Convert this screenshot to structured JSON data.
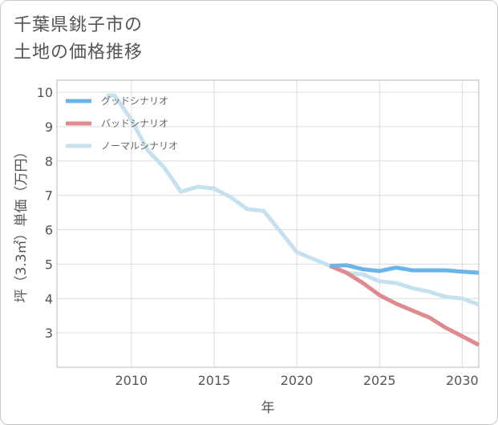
{
  "page": {
    "title": "千葉県銚子市の\n土地の価格推移"
  },
  "chart_data": {
    "type": "line",
    "xlabel": "年",
    "ylabel": "坪（3.3㎡）単価（万円）",
    "xlim": [
      2005.5,
      2031
    ],
    "ylim": [
      2,
      10.35
    ],
    "x_ticks": [
      2010,
      2015,
      2020,
      2025,
      2030
    ],
    "y_ticks": [
      3,
      4,
      5,
      6,
      7,
      8,
      9,
      10
    ],
    "grid": true,
    "legend_position": "top-left",
    "series": [
      {
        "name": "グッドシナリオ",
        "color": "#6ab4e8",
        "x": [
          2022,
          2023,
          2024,
          2025,
          2026,
          2027,
          2028,
          2029,
          2030,
          2031
        ],
        "values": [
          4.95,
          4.97,
          4.85,
          4.8,
          4.9,
          4.82,
          4.82,
          4.82,
          4.78,
          4.75
        ]
      },
      {
        "name": "バッドシナリオ",
        "color": "#de8a8e",
        "x": [
          2022,
          2023,
          2024,
          2025,
          2026,
          2027,
          2028,
          2029,
          2030,
          2031
        ],
        "values": [
          4.95,
          4.75,
          4.45,
          4.1,
          3.85,
          3.65,
          3.45,
          3.15,
          2.9,
          2.65
        ]
      },
      {
        "name": "ノーマルシナリオ",
        "color": "#c5e0ee",
        "x": [
          2008.5,
          2009,
          2010,
          2011,
          2012,
          2013,
          2014,
          2015,
          2016,
          2017,
          2018,
          2019,
          2020,
          2021,
          2022,
          2023,
          2024,
          2025,
          2026,
          2027,
          2028,
          2029,
          2030,
          2031
        ],
        "values": [
          9.9,
          9.9,
          9.2,
          8.3,
          7.8,
          7.1,
          7.25,
          7.2,
          6.95,
          6.6,
          6.55,
          5.95,
          5.35,
          5.15,
          4.95,
          4.75,
          4.7,
          4.5,
          4.45,
          4.3,
          4.2,
          4.05,
          4.0,
          3.82
        ]
      }
    ]
  }
}
